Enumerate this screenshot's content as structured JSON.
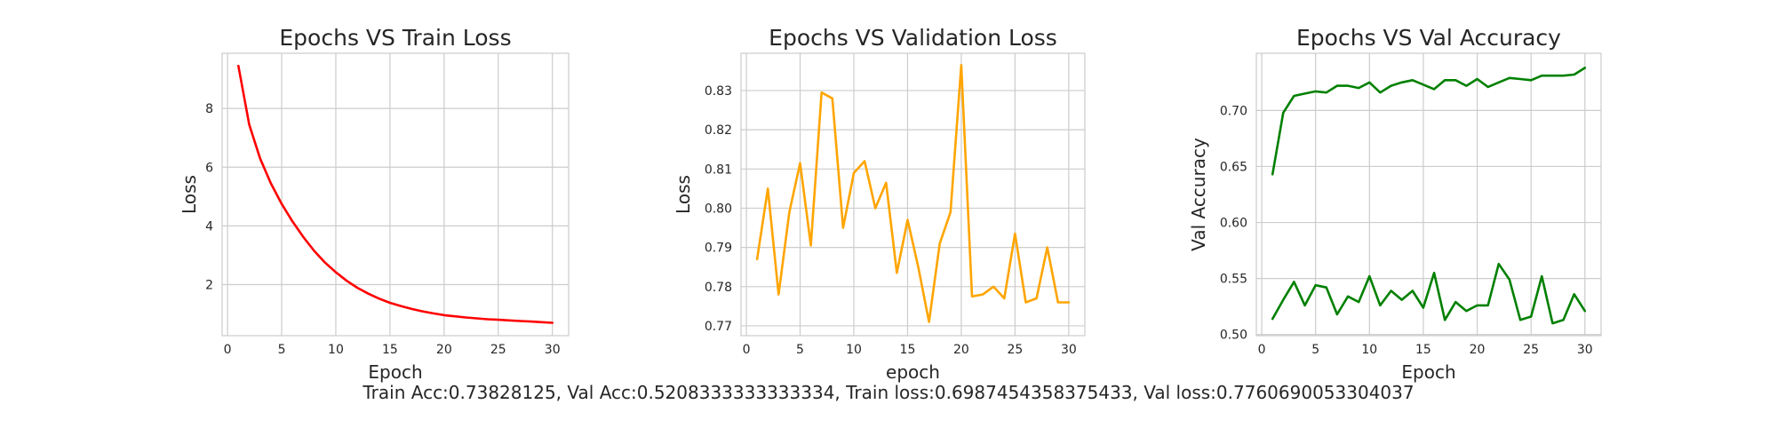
{
  "summary_text": "Train Acc:0.73828125, Val Acc:0.5208333333333334, Train loss:0.6987454358375433, Val loss:0.7760690053304037",
  "chart_data": [
    {
      "type": "line",
      "title": "Epochs VS Train Loss",
      "xlabel": "Epoch",
      "ylabel": "Loss",
      "xlim": [
        -0.5,
        31.5
      ],
      "ylim": [
        0.26,
        9.88
      ],
      "xticks": [
        0,
        5,
        10,
        15,
        20,
        25,
        30
      ],
      "xtick_labels": [
        "0",
        "5",
        "10",
        "15",
        "20",
        "25",
        "30"
      ],
      "yticks": [
        2,
        4,
        6,
        8
      ],
      "ytick_labels": [
        "2",
        "4",
        "6",
        "8"
      ],
      "grid": true,
      "series": [
        {
          "color": "#ff0000",
          "x": [
            1,
            2,
            3,
            4,
            5,
            6,
            7,
            8,
            9,
            10,
            11,
            12,
            13,
            14,
            15,
            16,
            17,
            18,
            19,
            20,
            21,
            22,
            23,
            24,
            25,
            26,
            27,
            28,
            29,
            30
          ],
          "y": [
            9.45,
            7.45,
            6.3,
            5.45,
            4.75,
            4.15,
            3.62,
            3.15,
            2.75,
            2.42,
            2.13,
            1.89,
            1.69,
            1.52,
            1.38,
            1.27,
            1.17,
            1.09,
            1.02,
            0.96,
            0.92,
            0.88,
            0.85,
            0.82,
            0.8,
            0.78,
            0.76,
            0.74,
            0.72,
            0.7
          ]
        }
      ]
    },
    {
      "type": "line",
      "title": "Epochs VS Validation Loss",
      "xlabel": "epoch",
      "ylabel": "Loss",
      "xlim": [
        -0.5,
        31.5
      ],
      "ylim": [
        0.7675,
        0.8395
      ],
      "xticks": [
        0,
        5,
        10,
        15,
        20,
        25,
        30
      ],
      "xtick_labels": [
        "0",
        "5",
        "10",
        "15",
        "20",
        "25",
        "30"
      ],
      "yticks": [
        0.77,
        0.78,
        0.79,
        0.8,
        0.81,
        0.82,
        0.83
      ],
      "ytick_labels": [
        "0.77",
        "0.78",
        "0.79",
        "0.80",
        "0.81",
        "0.82",
        "0.83"
      ],
      "grid": true,
      "series": [
        {
          "color": "#ffa500",
          "x": [
            1,
            2,
            3,
            4,
            5,
            6,
            7,
            8,
            9,
            10,
            11,
            12,
            13,
            14,
            15,
            16,
            17,
            18,
            19,
            20,
            21,
            22,
            23,
            24,
            25,
            26,
            27,
            28,
            29,
            30
          ],
          "y": [
            0.787,
            0.805,
            0.778,
            0.799,
            0.8115,
            0.7905,
            0.8295,
            0.828,
            0.795,
            0.809,
            0.812,
            0.8,
            0.8065,
            0.7835,
            0.797,
            0.785,
            0.771,
            0.791,
            0.799,
            0.8365,
            0.7775,
            0.778,
            0.78,
            0.777,
            0.7935,
            0.776,
            0.777,
            0.79,
            0.776,
            0.776
          ]
        }
      ]
    },
    {
      "type": "line",
      "title": "Epochs VS Val Accuracy",
      "xlabel": "Epoch",
      "ylabel": "Val Accuracy",
      "xlim": [
        -0.5,
        31.5
      ],
      "ylim": [
        0.499,
        0.751
      ],
      "xticks": [
        0,
        5,
        10,
        15,
        20,
        25,
        30
      ],
      "xtick_labels": [
        "0",
        "5",
        "10",
        "15",
        "20",
        "25",
        "30"
      ],
      "yticks": [
        0.5,
        0.55,
        0.6,
        0.65,
        0.7
      ],
      "ytick_labels": [
        "0.50",
        "0.55",
        "0.60",
        "0.65",
        "0.70"
      ],
      "grid": true,
      "series": [
        {
          "color": "#008000",
          "x": [
            1,
            2,
            3,
            4,
            5,
            6,
            7,
            8,
            9,
            10,
            11,
            12,
            13,
            14,
            15,
            16,
            17,
            18,
            19,
            20,
            21,
            22,
            23,
            24,
            25,
            26,
            27,
            28,
            29,
            30
          ],
          "y": [
            0.643,
            0.698,
            0.713,
            0.715,
            0.717,
            0.716,
            0.722,
            0.722,
            0.72,
            0.725,
            0.716,
            0.722,
            0.725,
            0.727,
            0.723,
            0.719,
            0.727,
            0.727,
            0.722,
            0.728,
            0.721,
            0.725,
            0.729,
            0.728,
            0.727,
            0.731,
            0.731,
            0.731,
            0.732,
            0.738
          ]
        },
        {
          "color": "#008000",
          "x": [
            1,
            2,
            3,
            4,
            5,
            6,
            7,
            8,
            9,
            10,
            11,
            12,
            13,
            14,
            15,
            16,
            17,
            18,
            19,
            20,
            21,
            22,
            23,
            24,
            25,
            26,
            27,
            28,
            29,
            30
          ],
          "y": [
            0.514,
            0.531,
            0.547,
            0.526,
            0.544,
            0.542,
            0.518,
            0.534,
            0.529,
            0.552,
            0.526,
            0.539,
            0.531,
            0.539,
            0.524,
            0.555,
            0.513,
            0.529,
            0.521,
            0.526,
            0.526,
            0.563,
            0.549,
            0.513,
            0.516,
            0.552,
            0.51,
            0.513,
            0.536,
            0.521
          ]
        }
      ]
    }
  ]
}
